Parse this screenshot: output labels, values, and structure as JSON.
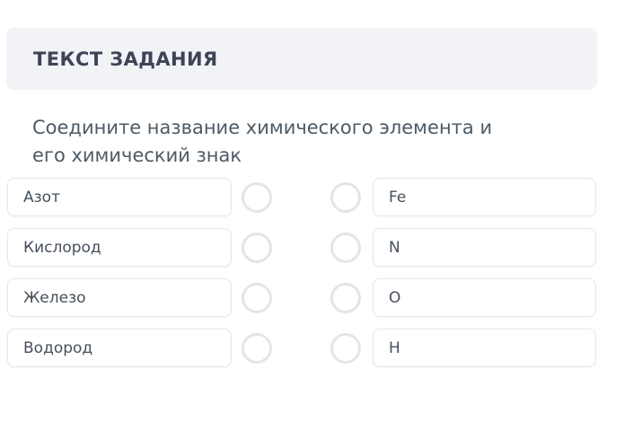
{
  "header": {
    "title": "ТЕКСТ ЗАДАНИЯ"
  },
  "question": {
    "full_text": "Соедините название химического элемента и его химический знак",
    "lines": [
      "Соедините название химического элемента и",
      "его химический знак"
    ]
  },
  "rows": [
    {
      "left": "Азот",
      "right": "Fe"
    },
    {
      "left": "Кислород",
      "right": "N"
    },
    {
      "left": "Железо",
      "right": "O"
    },
    {
      "left": "Водород",
      "right": "H"
    }
  ],
  "colors": {
    "header_bg": "#f2f3f7",
    "header_text": "#3d4456",
    "question_text": "#4e5a65",
    "box_border": "#e4e6e9",
    "box_text": "#464f5b",
    "circle_border": "#e2e5e9",
    "page_bg": "#ffffff"
  }
}
